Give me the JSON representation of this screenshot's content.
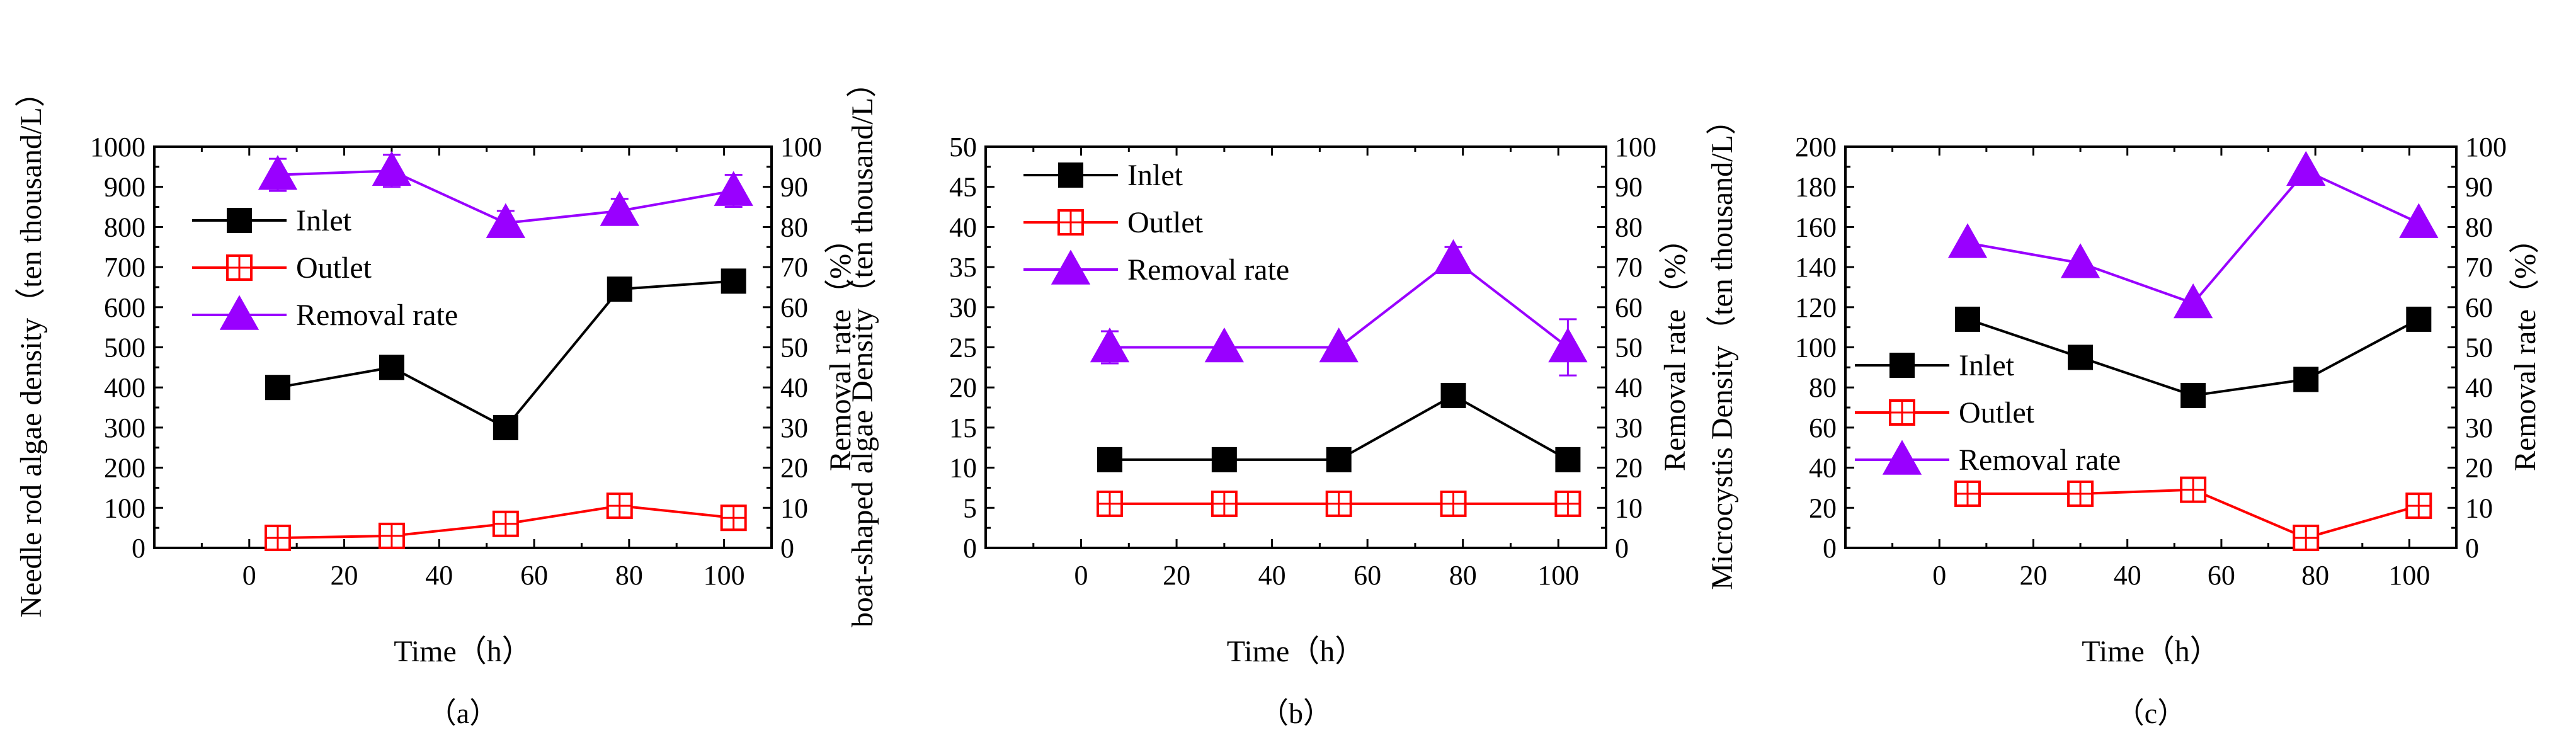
{
  "figure": {
    "background": "#ffffff"
  },
  "chart_data": [
    {
      "type": "line",
      "panel_label": "（a）",
      "xlabel": "Time（h）",
      "ylabel": "Needle rod algae density（ten thousand/L）",
      "y2label": "Removal rate（%）",
      "xlim": [
        -20,
        110
      ],
      "xticks": [
        0,
        20,
        40,
        60,
        80,
        100
      ],
      "ylim": [
        0,
        1000
      ],
      "yticks": [
        0,
        100,
        200,
        300,
        400,
        500,
        600,
        700,
        800,
        900,
        1000
      ],
      "y2lim": [
        0,
        100
      ],
      "y2ticks": [
        0,
        10,
        20,
        30,
        40,
        50,
        60,
        70,
        80,
        90,
        100
      ],
      "legend_position": "upper-left",
      "legend": [
        "Inlet",
        "Outlet",
        "Removal rate"
      ],
      "series": [
        {
          "name": "Inlet",
          "axis": "left",
          "color": "#000000",
          "marker": "filled-square",
          "x": [
            6,
            30,
            54,
            78,
            102
          ],
          "values": [
            400,
            450,
            300,
            645,
            665
          ],
          "error": [
            0,
            0,
            0,
            0,
            0
          ]
        },
        {
          "name": "Outlet",
          "axis": "left",
          "color": "#ff0000",
          "marker": "open-square",
          "x": [
            6,
            30,
            54,
            78,
            102
          ],
          "values": [
            25,
            30,
            60,
            105,
            75
          ],
          "error": [
            10,
            10,
            12,
            15,
            15
          ]
        },
        {
          "name": "Removal rate",
          "axis": "right",
          "color": "#9900ff",
          "marker": "filled-triangle",
          "x": [
            6,
            30,
            54,
            78,
            102
          ],
          "values": [
            93,
            94,
            81,
            84,
            89
          ],
          "error": [
            4,
            4,
            3,
            3,
            4
          ]
        }
      ]
    },
    {
      "type": "line",
      "panel_label": "（b）",
      "xlabel": "Time（h）",
      "ylabel": "boat-shaped algae Density（ten thousand/L）",
      "y2label": "Removal rate（%）",
      "xlim": [
        -20,
        110
      ],
      "xticks": [
        0,
        20,
        40,
        60,
        80,
        100
      ],
      "ylim": [
        0,
        50
      ],
      "yticks": [
        0,
        5,
        10,
        15,
        20,
        25,
        30,
        35,
        40,
        45,
        50
      ],
      "y2lim": [
        0,
        100
      ],
      "y2ticks": [
        0,
        10,
        20,
        30,
        40,
        50,
        60,
        70,
        80,
        90,
        100
      ],
      "legend_position": "upper-left",
      "legend": [
        "Inlet",
        "Outlet",
        "Removal rate"
      ],
      "series": [
        {
          "name": "Inlet",
          "axis": "left",
          "color": "#000000",
          "marker": "filled-square",
          "x": [
            6,
            30,
            54,
            78,
            102
          ],
          "values": [
            11,
            11,
            11,
            19,
            11
          ],
          "error": [
            0,
            0,
            0,
            0,
            0
          ]
        },
        {
          "name": "Outlet",
          "axis": "left",
          "color": "#ff0000",
          "marker": "open-square",
          "x": [
            6,
            30,
            54,
            78,
            102
          ],
          "values": [
            5.5,
            5.5,
            5.5,
            5.5,
            5.5
          ],
          "error": [
            0,
            0,
            0,
            0,
            0
          ]
        },
        {
          "name": "Removal rate",
          "axis": "right",
          "color": "#9900ff",
          "marker": "filled-triangle",
          "x": [
            6,
            30,
            54,
            78,
            102
          ],
          "values": [
            50,
            50,
            50,
            72,
            50
          ],
          "error": [
            4,
            0,
            0,
            3,
            7
          ]
        }
      ]
    },
    {
      "type": "line",
      "panel_label": "（c）",
      "xlabel": "Time（h）",
      "ylabel": "Microcystis Density（ten thousand/L）",
      "y2label": "Removal rate（%）",
      "xlim": [
        -20,
        110
      ],
      "xticks": [
        0,
        20,
        40,
        60,
        80,
        100
      ],
      "ylim": [
        0,
        200
      ],
      "yticks": [
        0,
        20,
        40,
        60,
        80,
        100,
        120,
        140,
        160,
        180,
        200
      ],
      "y2lim": [
        0,
        100
      ],
      "y2ticks": [
        0,
        10,
        20,
        30,
        40,
        50,
        60,
        70,
        80,
        90,
        100
      ],
      "legend_position": "middle-left",
      "legend": [
        "Inlet",
        "Outlet",
        "Removal rate"
      ],
      "series": [
        {
          "name": "Inlet",
          "axis": "left",
          "color": "#000000",
          "marker": "filled-square",
          "x": [
            6,
            30,
            54,
            78,
            102
          ],
          "values": [
            114,
            95,
            76,
            84,
            114
          ],
          "error": [
            0,
            0,
            0,
            0,
            0
          ]
        },
        {
          "name": "Outlet",
          "axis": "left",
          "color": "#ff0000",
          "marker": "open-square",
          "x": [
            6,
            30,
            54,
            78,
            102
          ],
          "values": [
            27,
            27,
            29,
            5,
            21
          ],
          "error": [
            0,
            0,
            0,
            0,
            0
          ]
        },
        {
          "name": "Removal rate",
          "axis": "right",
          "color": "#9900ff",
          "marker": "filled-triangle",
          "x": [
            6,
            30,
            54,
            78,
            102
          ],
          "values": [
            76,
            71,
            61,
            94,
            81
          ],
          "error": [
            0,
            0,
            0,
            0,
            0
          ]
        }
      ]
    }
  ]
}
